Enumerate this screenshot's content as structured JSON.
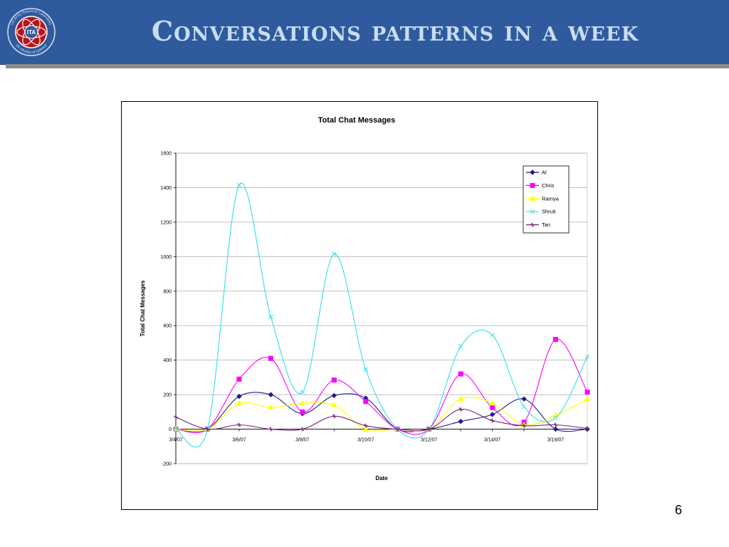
{
  "slide": {
    "title": "Conversations patterns in a week",
    "number": "6",
    "header_color": "#2f5a9e",
    "logo": {
      "center_text": "ITA",
      "ring_text_top": "US Army Research Laboratory",
      "ring_text_bottom": "UK Ministry of Defence",
      "icon": "ita-logo-icon"
    }
  },
  "chart_data": {
    "type": "line",
    "title": "Total Chat Messages",
    "xlabel": "Date",
    "ylabel": "Total Chat Messages",
    "ylim": [
      -200,
      1600
    ],
    "yticks": [
      -200,
      0,
      200,
      400,
      600,
      800,
      1000,
      1200,
      1400,
      1600
    ],
    "x": [
      "3/4/07",
      "3/5/07",
      "3/6/07",
      "3/7/07",
      "3/8/07",
      "3/9/07",
      "3/10/07",
      "3/11/07",
      "3/12/07",
      "3/13/07",
      "3/14/07",
      "3/15/07",
      "3/16/07",
      "3/17/07"
    ],
    "xtick_labels": [
      "3/4/07",
      "",
      "3/6/07",
      "",
      "3/8/07",
      "",
      "3/10/07",
      "",
      "3/12/07",
      "",
      "3/14/07",
      "",
      "3/16/07",
      ""
    ],
    "grid": true,
    "legend_position": "top-right",
    "series": [
      {
        "name": "Al",
        "color": "#1f1a8c",
        "marker": "diamond",
        "values": [
          0,
          0,
          190,
          200,
          90,
          195,
          180,
          0,
          0,
          45,
          85,
          175,
          0,
          0
        ]
      },
      {
        "name": "Chris",
        "color": "#ff00ff",
        "marker": "square",
        "values": [
          0,
          0,
          290,
          410,
          100,
          285,
          160,
          0,
          0,
          320,
          125,
          40,
          520,
          215
        ]
      },
      {
        "name": "Ramya",
        "color": "#ffff00",
        "marker": "triangle",
        "values": [
          0,
          0,
          150,
          125,
          150,
          140,
          0,
          0,
          0,
          175,
          150,
          25,
          80,
          175
        ]
      },
      {
        "name": "Shruti",
        "color": "#33e0e6",
        "marker": "x",
        "values": [
          0,
          0,
          1415,
          650,
          215,
          1015,
          345,
          0,
          0,
          480,
          545,
          130,
          65,
          420
        ]
      },
      {
        "name": "Tan",
        "color": "#7b1f7b",
        "marker": "star",
        "values": [
          70,
          0,
          25,
          0,
          0,
          75,
          20,
          0,
          0,
          115,
          50,
          20,
          25,
          5
        ]
      }
    ]
  }
}
